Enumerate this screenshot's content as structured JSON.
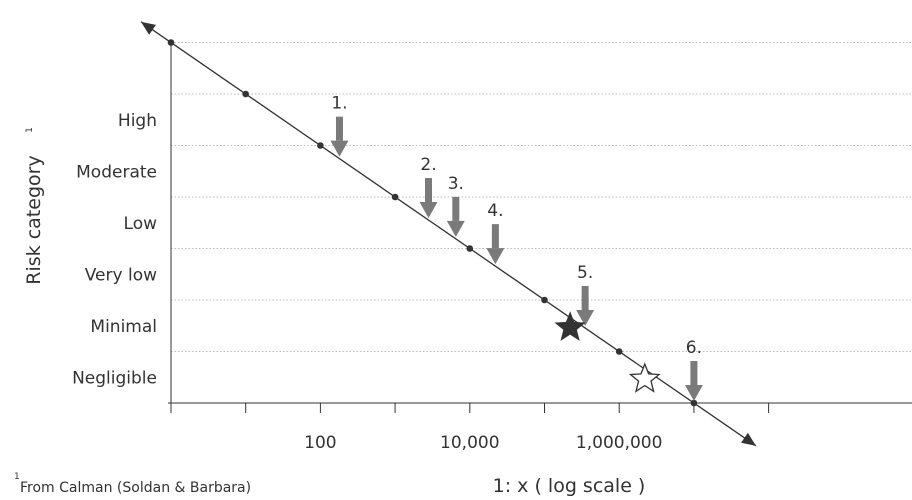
{
  "chart_data": {
    "type": "line",
    "title": "",
    "ylabel": "Risk category",
    "ylabel_superscript": "1",
    "xlabel": "1: x ( log scale )",
    "x_scale": "log",
    "x_ticks": [
      {
        "value": 100,
        "label": "100"
      },
      {
        "value": 10000,
        "label": "10,000"
      },
      {
        "value": 1000000,
        "label": "1,000,000"
      }
    ],
    "categories": [
      "High",
      "Moderate",
      "Low",
      "Very low",
      "Minimal",
      "Negligible"
    ],
    "line_points": [
      {
        "x": 1,
        "y": 7
      },
      {
        "x": 10,
        "y": 6
      },
      {
        "x": 100,
        "y": 5
      },
      {
        "x": 1000,
        "y": 4
      },
      {
        "x": 10000,
        "y": 3
      },
      {
        "x": 100000,
        "y": 2
      },
      {
        "x": 1000000,
        "y": 1
      },
      {
        "x": 10000000,
        "y": 0
      }
    ],
    "markers": [
      {
        "label": "1.",
        "x": 180
      },
      {
        "label": "2.",
        "x": 2800
      },
      {
        "label": "3.",
        "x": 6500
      },
      {
        "label": "4.",
        "x": 22000
      },
      {
        "label": "5.",
        "x": 350000
      },
      {
        "label": "6.",
        "x": 10000000
      }
    ],
    "stars": [
      {
        "style": "filled",
        "x": 220000
      },
      {
        "style": "outline",
        "x": 2200000
      }
    ],
    "grid": "horizontal dotted",
    "colors": {
      "line": "#333333",
      "arrow": "#7a7a7a",
      "star": "#333333",
      "grid": "#bbbbbb"
    }
  },
  "footnote": {
    "marker": "1",
    "text": "From Calman (Soldan & Barbara)"
  }
}
